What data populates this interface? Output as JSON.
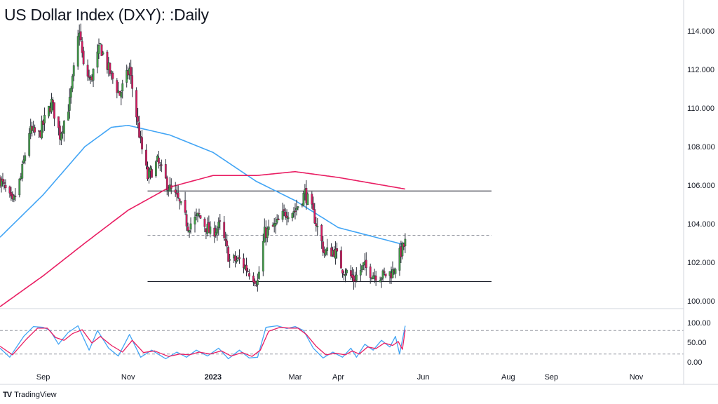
{
  "title": "US Dollar Index (DXY): :Daily",
  "branding": {
    "logo_icon": "tradingview-logo-icon",
    "label": "TradingView"
  },
  "colors": {
    "bull": "#43a047",
    "bear": "#d81b60",
    "wick": "#2a2e39",
    "ma_fast": "#42a5f5",
    "ma_slow": "#e91e63",
    "stoch_k": "#42a5f5",
    "stoch_d": "#e91e63",
    "level": "#131722",
    "dashed": "#9598a1"
  },
  "chart_data": [
    {
      "type": "candlestick",
      "title": "US Dollar Index (DXY): :Daily",
      "y_ticks": [
        "114.000",
        "112.000",
        "110.000",
        "108.000",
        "106.000",
        "104.000",
        "102.000",
        "100.000"
      ],
      "ylim": [
        99.6,
        115.6
      ],
      "x_ticks": [
        "Sep",
        "Nov",
        "2023",
        "Mar",
        "Apr",
        "Jun",
        "Aug",
        "Sep",
        "Nov"
      ],
      "x_dates": [
        "2022-08-01",
        "2022-09-01",
        "2022-11-01",
        "2023-01-01",
        "2023-03-01",
        "2023-04-01",
        "2023-06-01",
        "2023-08-01",
        "2023-09-01",
        "2023-11-01",
        "2023-12-05"
      ],
      "last_date": "2023-05-19",
      "close_anchors": [
        [
          "2022-08-01",
          106.3
        ],
        [
          "2022-08-10",
          105.0
        ],
        [
          "2022-08-16",
          106.4
        ],
        [
          "2022-08-22",
          108.8
        ],
        [
          "2022-08-29",
          108.6
        ],
        [
          "2022-09-07",
          110.3
        ],
        [
          "2022-09-13",
          108.6
        ],
        [
          "2022-09-20",
          110.3
        ],
        [
          "2022-09-27",
          114.1
        ],
        [
          "2022-09-30",
          112.1
        ],
        [
          "2022-10-05",
          111.4
        ],
        [
          "2022-10-12",
          113.2
        ],
        [
          "2022-10-18",
          112.0
        ],
        [
          "2022-10-26",
          110.7
        ],
        [
          "2022-11-02",
          112.0
        ],
        [
          "2022-11-10",
          108.2
        ],
        [
          "2022-11-15",
          106.4
        ],
        [
          "2022-11-22",
          107.2
        ],
        [
          "2022-11-30",
          105.9
        ],
        [
          "2022-12-07",
          105.2
        ],
        [
          "2022-12-14",
          103.9
        ],
        [
          "2022-12-22",
          104.4
        ],
        [
          "2022-12-30",
          103.5
        ],
        [
          "2023-01-06",
          103.9
        ],
        [
          "2023-01-13",
          102.1
        ],
        [
          "2023-01-20",
          102.1
        ],
        [
          "2023-01-26",
          101.6
        ],
        [
          "2023-02-02",
          101.0
        ],
        [
          "2023-02-07",
          103.5
        ],
        [
          "2023-02-15",
          103.9
        ],
        [
          "2023-02-22",
          104.6
        ],
        [
          "2023-03-01",
          104.7
        ],
        [
          "2023-03-08",
          105.6
        ],
        [
          "2023-03-15",
          104.3
        ],
        [
          "2023-03-22",
          102.5
        ],
        [
          "2023-03-29",
          102.6
        ],
        [
          "2023-04-04",
          101.7
        ],
        [
          "2023-04-12",
          101.1
        ],
        [
          "2023-04-19",
          101.8
        ],
        [
          "2023-04-26",
          101.4
        ],
        [
          "2023-05-03",
          101.3
        ],
        [
          "2023-05-10",
          101.5
        ],
        [
          "2023-05-15",
          102.4
        ],
        [
          "2023-05-19",
          103.0
        ]
      ],
      "overlays": [
        {
          "kind": "moving-average",
          "color": "#42a5f5",
          "points": [
            [
              "2022-08-01",
              103.3
            ],
            [
              "2022-09-01",
              105.5
            ],
            [
              "2022-10-01",
              108.0
            ],
            [
              "2022-10-20",
              109.0
            ],
            [
              "2022-11-01",
              109.1
            ],
            [
              "2022-12-01",
              108.6
            ],
            [
              "2023-01-01",
              107.7
            ],
            [
              "2023-02-01",
              106.2
            ],
            [
              "2023-03-01",
              105.2
            ],
            [
              "2023-04-01",
              103.8
            ],
            [
              "2023-05-19",
              102.9
            ]
          ]
        },
        {
          "kind": "moving-average",
          "color": "#e91e63",
          "points": [
            [
              "2022-08-01",
              99.7
            ],
            [
              "2022-09-01",
              101.3
            ],
            [
              "2022-10-01",
              103.0
            ],
            [
              "2022-11-01",
              104.7
            ],
            [
              "2022-12-01",
              105.9
            ],
            [
              "2023-01-01",
              106.5
            ],
            [
              "2023-02-01",
              106.5
            ],
            [
              "2023-03-01",
              106.7
            ],
            [
              "2023-04-01",
              106.4
            ],
            [
              "2023-05-19",
              105.8
            ]
          ]
        }
      ],
      "levels": [
        {
          "value": 105.7,
          "from": "2022-11-15",
          "to": "2023-07-20",
          "style": "solid"
        },
        {
          "value": 103.4,
          "from": "2022-11-15",
          "to": "2023-07-20",
          "style": "dashed"
        },
        {
          "value": 101.0,
          "from": "2022-11-15",
          "to": "2023-07-20",
          "style": "solid"
        }
      ]
    },
    {
      "type": "line",
      "name": "stochastic-oscillator",
      "y_ticks": [
        "100.00",
        "50.00",
        "0.00"
      ],
      "ylim": [
        0,
        100
      ],
      "levels": [
        80,
        20
      ],
      "series": [
        {
          "color": "#42a5f5",
          "points": [
            [
              "2022-08-01",
              35
            ],
            [
              "2022-08-08",
              12
            ],
            [
              "2022-08-18",
              65
            ],
            [
              "2022-08-25",
              90
            ],
            [
              "2022-09-01",
              88
            ],
            [
              "2022-09-06",
              80
            ],
            [
              "2022-09-12",
              45
            ],
            [
              "2022-09-19",
              75
            ],
            [
              "2022-09-26",
              92
            ],
            [
              "2022-10-04",
              30
            ],
            [
              "2022-10-10",
              80
            ],
            [
              "2022-10-18",
              35
            ],
            [
              "2022-10-25",
              15
            ],
            [
              "2022-11-02",
              70
            ],
            [
              "2022-11-10",
              12
            ],
            [
              "2022-11-18",
              30
            ],
            [
              "2022-11-28",
              8
            ],
            [
              "2022-12-06",
              25
            ],
            [
              "2022-12-13",
              12
            ],
            [
              "2022-12-20",
              30
            ],
            [
              "2022-12-28",
              15
            ],
            [
              "2023-01-05",
              35
            ],
            [
              "2023-01-12",
              8
            ],
            [
              "2023-01-20",
              30
            ],
            [
              "2023-01-27",
              10
            ],
            [
              "2023-02-02",
              12
            ],
            [
              "2023-02-08",
              88
            ],
            [
              "2023-02-16",
              92
            ],
            [
              "2023-02-23",
              85
            ],
            [
              "2023-03-01",
              90
            ],
            [
              "2023-03-07",
              80
            ],
            [
              "2023-03-14",
              35
            ],
            [
              "2023-03-21",
              10
            ],
            [
              "2023-03-28",
              25
            ],
            [
              "2023-04-04",
              12
            ],
            [
              "2023-04-10",
              35
            ],
            [
              "2023-04-14",
              12
            ],
            [
              "2023-04-20",
              45
            ],
            [
              "2023-04-26",
              30
            ],
            [
              "2023-05-02",
              55
            ],
            [
              "2023-05-08",
              38
            ],
            [
              "2023-05-12",
              65
            ],
            [
              "2023-05-15",
              20
            ],
            [
              "2023-05-19",
              92
            ]
          ]
        },
        {
          "color": "#e91e63",
          "points": [
            [
              "2022-08-01",
              40
            ],
            [
              "2022-08-10",
              18
            ],
            [
              "2022-08-20",
              58
            ],
            [
              "2022-08-28",
              86
            ],
            [
              "2022-09-04",
              86
            ],
            [
              "2022-09-10",
              62
            ],
            [
              "2022-09-16",
              55
            ],
            [
              "2022-09-22",
              72
            ],
            [
              "2022-09-29",
              82
            ],
            [
              "2022-10-06",
              48
            ],
            [
              "2022-10-12",
              65
            ],
            [
              "2022-10-20",
              42
            ],
            [
              "2022-10-28",
              25
            ],
            [
              "2022-11-04",
              55
            ],
            [
              "2022-11-12",
              24
            ],
            [
              "2022-11-20",
              28
            ],
            [
              "2022-11-30",
              14
            ],
            [
              "2022-12-08",
              20
            ],
            [
              "2022-12-15",
              18
            ],
            [
              "2022-12-22",
              25
            ],
            [
              "2022-12-30",
              20
            ],
            [
              "2023-01-07",
              28
            ],
            [
              "2023-01-14",
              15
            ],
            [
              "2023-01-22",
              24
            ],
            [
              "2023-01-29",
              14
            ],
            [
              "2023-02-04",
              30
            ],
            [
              "2023-02-10",
              78
            ],
            [
              "2023-02-18",
              88
            ],
            [
              "2023-02-25",
              86
            ],
            [
              "2023-03-03",
              86
            ],
            [
              "2023-03-09",
              70
            ],
            [
              "2023-03-16",
              40
            ],
            [
              "2023-03-23",
              18
            ],
            [
              "2023-03-30",
              22
            ],
            [
              "2023-04-06",
              18
            ],
            [
              "2023-04-11",
              28
            ],
            [
              "2023-04-16",
              20
            ],
            [
              "2023-04-22",
              38
            ],
            [
              "2023-04-28",
              34
            ],
            [
              "2023-05-04",
              48
            ],
            [
              "2023-05-10",
              42
            ],
            [
              "2023-05-14",
              52
            ],
            [
              "2023-05-17",
              32
            ],
            [
              "2023-05-19",
              82
            ]
          ]
        }
      ]
    }
  ]
}
